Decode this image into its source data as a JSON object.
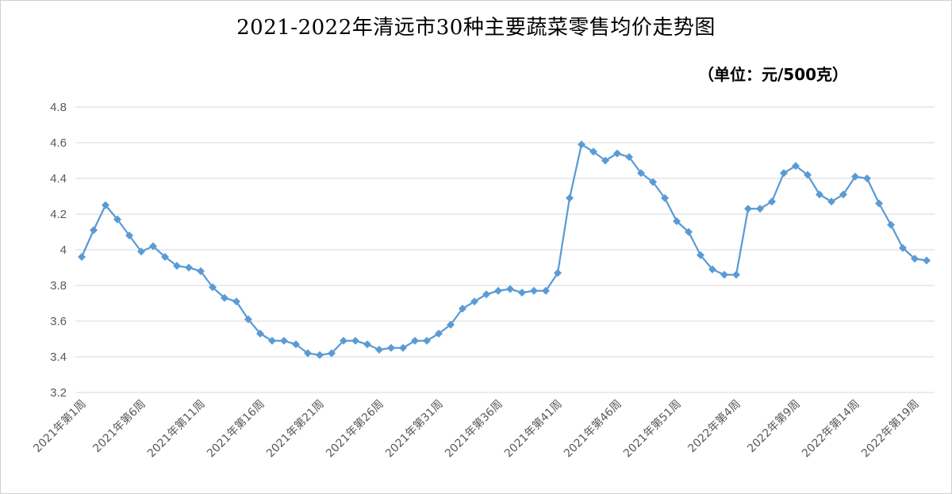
{
  "chart_data": {
    "type": "line",
    "title": "2021-2022年清远市30种主要蔬菜零售均价走势图",
    "unit_label": "（单位：元/500克）",
    "xlabel": "",
    "ylabel": "",
    "ylim": [
      3.2,
      4.8
    ],
    "yticks": [
      "3.2",
      "3.4",
      "3.6",
      "3.8",
      "4",
      "4.2",
      "4.4",
      "4.6",
      "4.8"
    ],
    "grid": true,
    "legend": "none",
    "colors": {
      "line": "#5b9bd5",
      "marker": "#5b9bd5",
      "grid": "#d9d9d9"
    },
    "x_tick_labels": [
      {
        "index": 0,
        "label": "2021年第1周"
      },
      {
        "index": 5,
        "label": "2021年第6周"
      },
      {
        "index": 10,
        "label": "2021年第11周"
      },
      {
        "index": 15,
        "label": "2021年第16周"
      },
      {
        "index": 20,
        "label": "2021年第21周"
      },
      {
        "index": 25,
        "label": "2021年第26周"
      },
      {
        "index": 30,
        "label": "2021年第31周"
      },
      {
        "index": 35,
        "label": "2021年第36周"
      },
      {
        "index": 40,
        "label": "2021年第41周"
      },
      {
        "index": 45,
        "label": "2021年第46周"
      },
      {
        "index": 50,
        "label": "2021年第51周"
      },
      {
        "index": 55,
        "label": "2022年第4周"
      },
      {
        "index": 60,
        "label": "2022年第9周"
      },
      {
        "index": 65,
        "label": "2022年第14周"
      },
      {
        "index": 70,
        "label": "2022年第19周"
      }
    ],
    "series": [
      {
        "values": [
          3.96,
          4.11,
          4.25,
          4.17,
          4.08,
          3.99,
          4.02,
          3.96,
          3.91,
          3.9,
          3.88,
          3.79,
          3.73,
          3.71,
          3.61,
          3.53,
          3.49,
          3.49,
          3.47,
          3.42,
          3.41,
          3.42,
          3.49,
          3.49,
          3.47,
          3.44,
          3.45,
          3.45,
          3.49,
          3.49,
          3.53,
          3.58,
          3.67,
          3.71,
          3.75,
          3.77,
          3.78,
          3.76,
          3.77,
          3.77,
          3.87,
          4.29,
          4.59,
          4.55,
          4.5,
          4.54,
          4.52,
          4.43,
          4.38,
          4.29,
          4.16,
          4.1,
          3.97,
          3.89,
          3.86,
          3.86,
          4.23,
          4.23,
          4.27,
          4.43,
          4.47,
          4.42,
          4.31,
          4.27,
          4.31,
          4.41,
          4.4,
          4.26,
          4.14,
          4.01,
          3.95,
          3.94
        ]
      }
    ]
  }
}
